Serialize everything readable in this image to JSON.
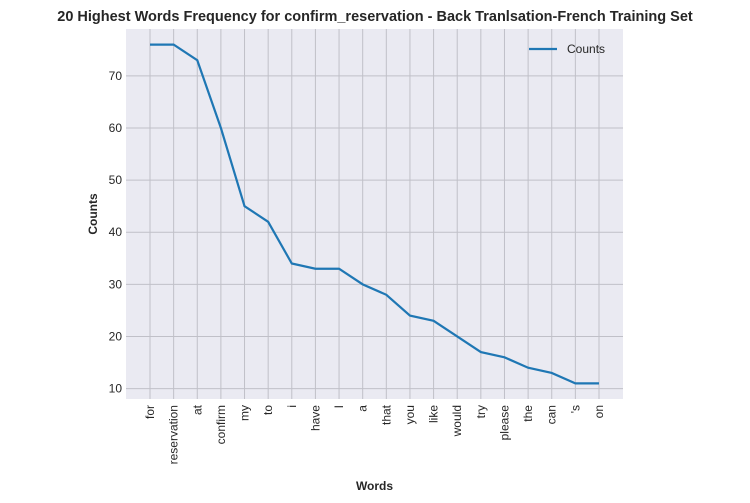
{
  "chart_data": {
    "type": "line",
    "title": "20 Highest Words Frequency for confirm_reservation - Back Tranlsation-French Training Set",
    "xlabel": "Words",
    "ylabel": "Counts",
    "categories": [
      "for",
      "reservation",
      "at",
      "confirm",
      "my",
      "to",
      "i",
      "have",
      "I",
      "a",
      "that",
      "you",
      "like",
      "would",
      "try",
      "please",
      "the",
      "can",
      "'s",
      "on"
    ],
    "series": [
      {
        "name": "Counts",
        "values": [
          76,
          76,
          73,
          60,
          45,
          42,
          34,
          33,
          33,
          30,
          28,
          24,
          23,
          20,
          17,
          16,
          14,
          13,
          11,
          11
        ]
      }
    ],
    "ylim": [
      8,
      79
    ],
    "yticks": [
      10,
      20,
      30,
      40,
      50,
      60,
      70
    ],
    "grid": true,
    "legend": "top-right",
    "colors": {
      "line": "#1f77b4",
      "plot_bg": "#eaeaf2",
      "grid": "#c0c0c8"
    }
  }
}
